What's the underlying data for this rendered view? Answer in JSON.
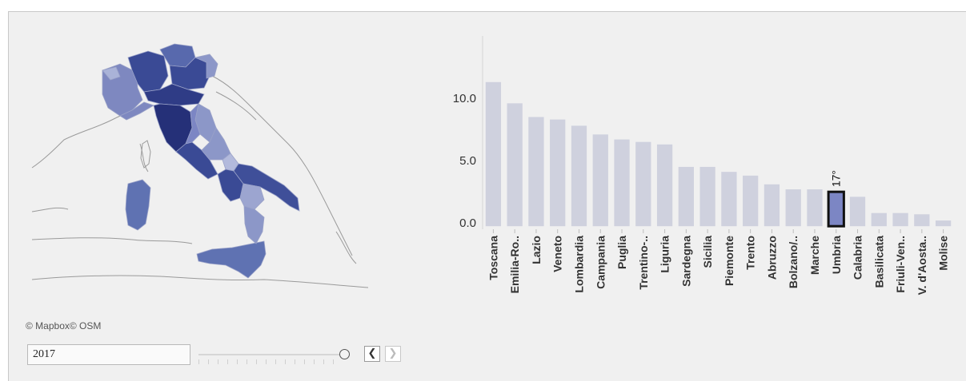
{
  "map": {
    "attribution": "© Mapbox© OSM",
    "year_value": "2017",
    "colors": {
      "dark": "#253078",
      "medium_dark": "#3a4a95",
      "medium": "#5869ad",
      "light": "#8c97c8",
      "lightest": "#aab3d8"
    }
  },
  "controls": {
    "prev_icon": "chevron-left-icon",
    "next_icon": "chevron-right-icon",
    "prev_symbol": "❮",
    "next_symbol": "❯"
  },
  "chart_data": {
    "type": "bar",
    "ylim": [
      -0.5,
      15.0
    ],
    "yticks": [
      {
        "value": 0.0,
        "label": "0.0"
      },
      {
        "value": 5.0,
        "label": "5.0"
      },
      {
        "value": 10.0,
        "label": "10.0"
      }
    ],
    "categories": [
      "Toscana",
      "Emilia-Ro..",
      "Lazio",
      "Veneto",
      "Lombardia",
      "Campania",
      "Puglia",
      "Trentino-..",
      "Liguria",
      "Sardegna",
      "Sicilia",
      "Piemonte",
      "Trento",
      "Abruzzo",
      "Bolzano/..",
      "Marche",
      "Umbria",
      "Calabria",
      "Basilicata",
      "Friuli-Ven..",
      "V. d'Aosta..",
      "Molise"
    ],
    "values": [
      11.3,
      9.6,
      8.5,
      8.3,
      7.8,
      7.1,
      6.7,
      6.5,
      6.3,
      4.5,
      4.5,
      4.1,
      3.8,
      3.1,
      2.7,
      2.7,
      2.5,
      2.1,
      0.8,
      0.8,
      0.7,
      0.2
    ],
    "highlight_index": 16,
    "highlight_label": "17°",
    "bar_color": "#cfd1de",
    "highlight_color": "#7c86c4",
    "highlight_border": "#111111"
  }
}
